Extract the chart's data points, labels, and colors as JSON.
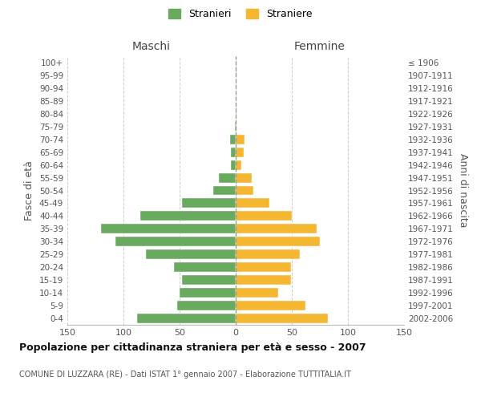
{
  "age_groups": [
    "0-4",
    "5-9",
    "10-14",
    "15-19",
    "20-24",
    "25-29",
    "30-34",
    "35-39",
    "40-44",
    "45-49",
    "50-54",
    "55-59",
    "60-64",
    "65-69",
    "70-74",
    "75-79",
    "80-84",
    "85-89",
    "90-94",
    "95-99",
    "100+"
  ],
  "birth_years": [
    "2002-2006",
    "1997-2001",
    "1992-1996",
    "1987-1991",
    "1982-1986",
    "1977-1981",
    "1972-1976",
    "1967-1971",
    "1962-1966",
    "1957-1961",
    "1952-1956",
    "1947-1951",
    "1942-1946",
    "1937-1941",
    "1932-1936",
    "1927-1931",
    "1922-1926",
    "1917-1921",
    "1912-1916",
    "1907-1911",
    "≤ 1906"
  ],
  "maschi": [
    88,
    52,
    50,
    48,
    55,
    80,
    107,
    120,
    85,
    48,
    20,
    15,
    4,
    4,
    5,
    1,
    0,
    0,
    0,
    0,
    0
  ],
  "femmine": [
    82,
    62,
    38,
    49,
    49,
    57,
    75,
    72,
    50,
    30,
    16,
    14,
    5,
    7,
    8,
    1,
    1,
    0,
    0,
    0,
    0
  ],
  "color_maschi": "#6aaa5e",
  "color_femmine": "#f5b731",
  "xlim": 150,
  "title": "Popolazione per cittadinanza straniera per età e sesso - 2007",
  "subtitle": "COMUNE DI LUZZARA (RE) - Dati ISTAT 1° gennaio 2007 - Elaborazione TUTTITALIA.IT",
  "header_left": "Maschi",
  "header_right": "Femmine",
  "ylabel_left": "Fasce di età",
  "ylabel_right": "Anni di nascita",
  "legend_maschi": "Stranieri",
  "legend_femmine": "Straniere",
  "background_color": "#ffffff",
  "grid_color": "#cccccc"
}
